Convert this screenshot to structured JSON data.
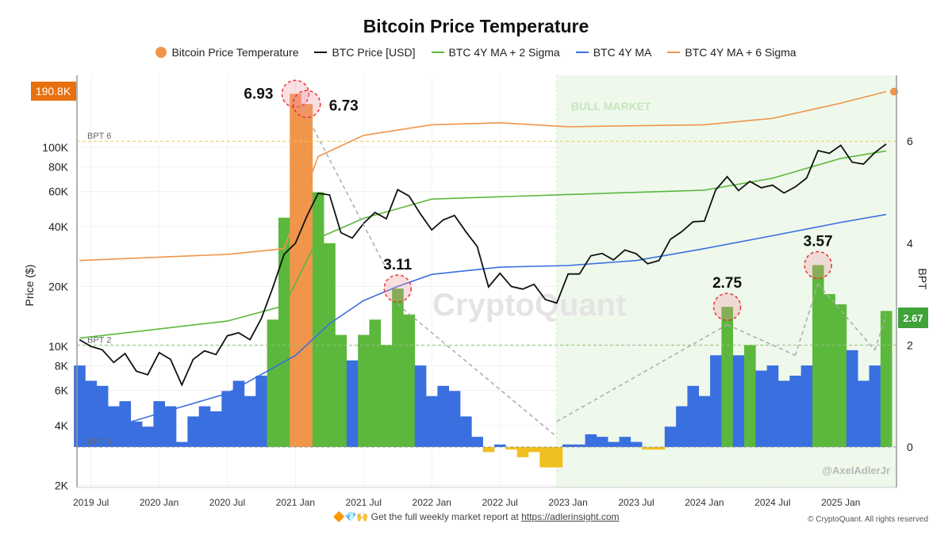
{
  "chart_data": {
    "type": "bar+line",
    "title": "Bitcoin Price Temperature",
    "legend": [
      {
        "label": "Bitcoin Price Temperature",
        "color": "#f0954a",
        "marker": "dot"
      },
      {
        "label": "BTC Price [USD]",
        "color": "#111111",
        "marker": "line"
      },
      {
        "label": "BTC 4Y MA + 2 Sigma",
        "color": "#5cb83c",
        "marker": "line"
      },
      {
        "label": "BTC 4Y MA",
        "color": "#3a6fe0",
        "marker": "line"
      },
      {
        "label": "BTC 4Y MA + 6 Sigma",
        "color": "#f0954a",
        "marker": "line"
      }
    ],
    "legend_position": "top",
    "ylabel_left": "Price ($)",
    "ylabel_right": "BPT",
    "yscale_left": "log",
    "ylim_left": [
      2000,
      240000
    ],
    "ylim_right": [
      -0.8,
      7.5
    ],
    "yticks_left": [
      {
        "v": 2000,
        "l": "2K"
      },
      {
        "v": 4000,
        "l": "4K"
      },
      {
        "v": 6000,
        "l": "6K"
      },
      {
        "v": 8000,
        "l": "8K"
      },
      {
        "v": 10000,
        "l": "10K"
      },
      {
        "v": 20000,
        "l": "20K"
      },
      {
        "v": 40000,
        "l": "40K"
      },
      {
        "v": 60000,
        "l": "60K"
      },
      {
        "v": 80000,
        "l": "80K"
      },
      {
        "v": 100000,
        "l": "100K"
      }
    ],
    "yticks_right": [
      0,
      2,
      4,
      6
    ],
    "xticks": [
      {
        "d": "2019-07",
        "l": "2019 Jul"
      },
      {
        "d": "2020-01",
        "l": "2020 Jan"
      },
      {
        "d": "2020-07",
        "l": "2020 Jul"
      },
      {
        "d": "2021-01",
        "l": "2021 Jan"
      },
      {
        "d": "2021-07",
        "l": "2021 Jul"
      },
      {
        "d": "2022-01",
        "l": "2022 Jan"
      },
      {
        "d": "2022-07",
        "l": "2022 Jul"
      },
      {
        "d": "2023-01",
        "l": "2023 Jan"
      },
      {
        "d": "2023-07",
        "l": "2023 Jul"
      },
      {
        "d": "2024-01",
        "l": "2024 Jan"
      },
      {
        "d": "2024-07",
        "l": "2024 Jul"
      },
      {
        "d": "2025-01",
        "l": "2025 Jan"
      }
    ],
    "grid": true,
    "months_start": "2019-06",
    "btc_price": [
      10800,
      10000,
      9600,
      8300,
      9200,
      7500,
      7200,
      9300,
      8600,
      6400,
      8600,
      9500,
      9100,
      11300,
      11700,
      10800,
      13800,
      19700,
      29000,
      33000,
      45000,
      58800,
      57700,
      37300,
      35000,
      41500,
      47100,
      43800,
      61300,
      57000,
      46300,
      38500,
      43200,
      45500,
      37700,
      31800,
      19900,
      23300,
      20000,
      19400,
      20500,
      17200,
      16500,
      23100,
      23100,
      28500,
      29300,
      27200,
      30500,
      29200,
      26000,
      27000,
      34500,
      37700,
      42300,
      42600,
      61200,
      71300,
      60700,
      67500,
      62700,
      64600,
      59000,
      63300,
      70200,
      96400,
      93400,
      102400,
      84300,
      82500,
      94200,
      104000
    ],
    "bpt": [
      1.6,
      1.3,
      1.2,
      0.8,
      0.9,
      0.5,
      0.4,
      0.9,
      0.8,
      0.1,
      0.6,
      0.8,
      0.7,
      1.1,
      1.3,
      1.0,
      1.4,
      2.5,
      4.5,
      6.93,
      6.73,
      5.0,
      4.0,
      2.2,
      1.7,
      2.2,
      2.5,
      2.0,
      3.11,
      2.6,
      1.6,
      1.0,
      1.2,
      1.1,
      0.6,
      0.2,
      -0.1,
      0.05,
      -0.05,
      -0.2,
      -0.1,
      -0.4,
      -0.4,
      0.05,
      0.05,
      0.25,
      0.2,
      0.1,
      0.2,
      0.1,
      -0.05,
      -0.05,
      0.4,
      0.8,
      1.2,
      1.0,
      1.8,
      2.75,
      1.8,
      2.0,
      1.5,
      1.6,
      1.3,
      1.4,
      1.6,
      3.57,
      3.0,
      2.8,
      1.9,
      1.3,
      1.6,
      2.67
    ],
    "ma4y": [
      [
        "2019-06",
        3500
      ],
      [
        "2020-01",
        4600
      ],
      [
        "2020-07",
        5800
      ],
      [
        "2021-01",
        9000
      ],
      [
        "2021-04",
        13000
      ],
      [
        "2021-07",
        17000
      ],
      [
        "2021-10",
        20000
      ],
      [
        "2022-01",
        23000
      ],
      [
        "2022-07",
        25000
      ],
      [
        "2023-01",
        25500
      ],
      [
        "2023-07",
        27000
      ],
      [
        "2024-01",
        31000
      ],
      [
        "2024-07",
        36000
      ],
      [
        "2025-01",
        42000
      ],
      [
        "2025-05",
        46000
      ]
    ],
    "ma4y_2sigma": [
      [
        "2019-06",
        11000
      ],
      [
        "2020-07",
        13400
      ],
      [
        "2020-12",
        16000
      ],
      [
        "2021-03",
        35000
      ],
      [
        "2021-07",
        44000
      ],
      [
        "2022-01",
        55000
      ],
      [
        "2023-01",
        58000
      ],
      [
        "2024-01",
        61000
      ],
      [
        "2024-07",
        70000
      ],
      [
        "2025-01",
        88000
      ],
      [
        "2025-05",
        96000
      ]
    ],
    "ma4y_6sigma": [
      [
        "2019-06",
        27000
      ],
      [
        "2020-07",
        29000
      ],
      [
        "2020-12",
        31000
      ],
      [
        "2021-03",
        90000
      ],
      [
        "2021-07",
        115000
      ],
      [
        "2022-01",
        130000
      ],
      [
        "2022-07",
        133000
      ],
      [
        "2023-01",
        127000
      ],
      [
        "2024-01",
        130000
      ],
      [
        "2024-07",
        140000
      ],
      [
        "2025-01",
        167000
      ],
      [
        "2025-05",
        190800
      ]
    ],
    "bpt_colors": {
      "negative": "#f0c020",
      "low": "#3a6fe0",
      "mid": "#5cb83c",
      "high": "#f0954a"
    },
    "reference_lines": [
      {
        "label": "BPT 6",
        "bpt": 6,
        "color": "#f0c85a"
      },
      {
        "label": "BPT 2",
        "bpt": 2,
        "color": "#8fc47a"
      },
      {
        "label": "BPT 0",
        "bpt": 0,
        "color": "#999999"
      }
    ],
    "region": {
      "label": "BULL MARKET",
      "from": "2022-12",
      "to": "2025-05",
      "color": "#eef9ec"
    },
    "annotations": [
      {
        "d": "2021-01",
        "v": 6.93,
        "l": "6.93",
        "side": "left"
      },
      {
        "d": "2021-02",
        "v": 6.73,
        "l": "6.73",
        "side": "right"
      },
      {
        "d": "2021-10",
        "v": 3.11,
        "l": "3.11",
        "side": "top"
      },
      {
        "d": "2024-03",
        "v": 2.75,
        "l": "2.75",
        "side": "top"
      },
      {
        "d": "2024-11",
        "v": 3.57,
        "l": "3.57",
        "side": "top"
      }
    ],
    "badges": {
      "left": "190.8K",
      "right": "2.67",
      "left_color": "#e8700f",
      "right_color": "#3fa33a"
    },
    "watermark": "CryptoQuant",
    "handle": "@AxelAdlerJr"
  },
  "footer": {
    "emojis": "🔶💎🙌",
    "text": "Get the full weekly market report at ",
    "link": "https://adlerinsight.com",
    "copyright": "© CryptoQuant. All rights reserved"
  }
}
